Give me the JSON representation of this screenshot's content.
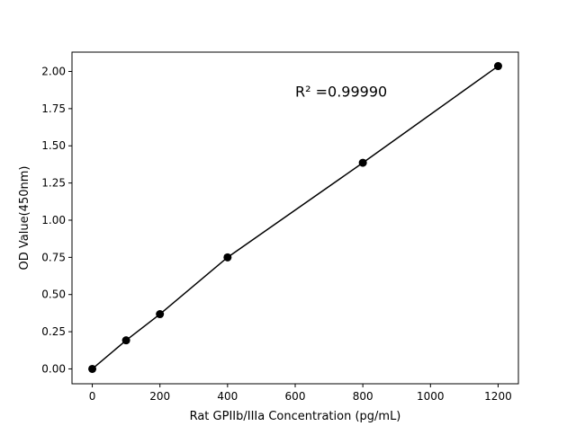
{
  "chart_data": {
    "type": "scatter",
    "title": "",
    "xlabel": "Rat GPIIb/IIIa Concentration (pg/mL)",
    "ylabel": "OD Value(450nm)",
    "xlim": [
      -60,
      1260
    ],
    "ylim": [
      -0.1,
      2.13
    ],
    "xticks": [
      0,
      200,
      400,
      600,
      800,
      1000,
      1200
    ],
    "yticks": [
      0.0,
      0.25,
      0.5,
      0.75,
      1.0,
      1.25,
      1.5,
      1.75,
      2.0
    ],
    "grid": false,
    "series": [
      {
        "x": [
          0,
          100,
          200,
          400,
          800,
          1200
        ],
        "y": [
          0.0,
          0.192,
          0.368,
          0.75,
          1.386,
          2.036
        ],
        "marker": "circle",
        "line": true,
        "color": "#000000"
      }
    ],
    "annotation": {
      "text": "R² =0.99990",
      "x": 600,
      "y": 1.83
    }
  }
}
